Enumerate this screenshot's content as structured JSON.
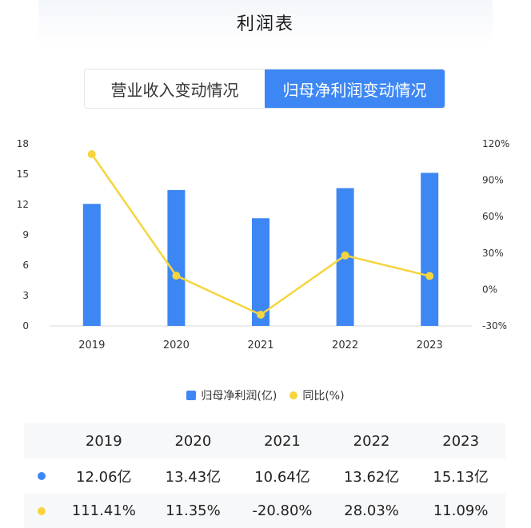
{
  "header": {
    "title": "利润表"
  },
  "tabs": [
    {
      "label": "营业收入变动情况",
      "active": false
    },
    {
      "label": "归母净利润变动情况",
      "active": true
    }
  ],
  "colors": {
    "accent": "#3d87f4",
    "line": "#f5d53d"
  },
  "chart_data": {
    "type": "bar",
    "categories": [
      "2019",
      "2020",
      "2021",
      "2022",
      "2023"
    ],
    "series": [
      {
        "name": "归母净利润(亿)",
        "type": "bar",
        "axis": "left",
        "values": [
          12.06,
          13.43,
          10.64,
          13.62,
          15.13
        ]
      },
      {
        "name": "同比(%)",
        "type": "line",
        "axis": "right",
        "values": [
          111.41,
          11.35,
          -20.8,
          28.03,
          11.09
        ]
      }
    ],
    "y_left": {
      "min": 0,
      "max": 18,
      "ticks": [
        "0",
        "3",
        "6",
        "9",
        "12",
        "15",
        "18"
      ]
    },
    "y_right": {
      "min": -30,
      "max": 120,
      "ticks": [
        "-30%",
        "0%",
        "30%",
        "60%",
        "90%",
        "120%"
      ]
    },
    "grid": false,
    "legend": "bottom"
  },
  "legend": [
    {
      "label": "归母净利润(亿)",
      "icon": "bar-swatch"
    },
    {
      "label": "同比(%)",
      "icon": "dot-swatch"
    }
  ],
  "table": {
    "years": [
      "2019",
      "2020",
      "2021",
      "2022",
      "2023"
    ],
    "profit": [
      "12.06亿",
      "13.43亿",
      "10.64亿",
      "13.62亿",
      "15.13亿"
    ],
    "yoy": [
      "111.41%",
      "11.35%",
      "-20.80%",
      "28.03%",
      "11.09%"
    ]
  }
}
